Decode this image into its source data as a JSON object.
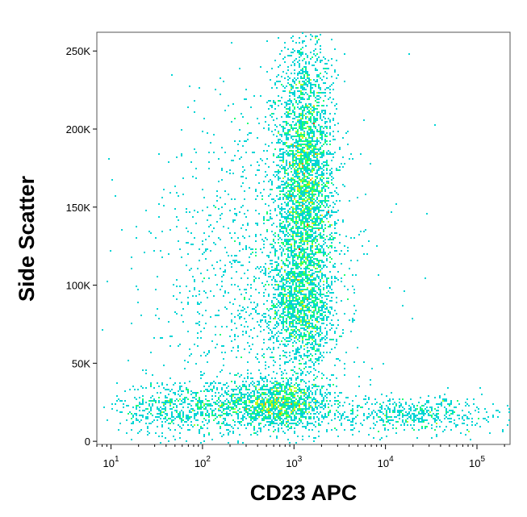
{
  "chart_data": {
    "type": "scatter",
    "subtype": "flow-cytometry-density-dot-plot",
    "xlabel": "CD23 APC",
    "ylabel": "Side Scatter",
    "x_scale": "log",
    "x_ticks": [
      {
        "value": 10,
        "base": "10",
        "exp": "1"
      },
      {
        "value": 100,
        "base": "10",
        "exp": "2"
      },
      {
        "value": 1000,
        "base": "10",
        "exp": "3"
      },
      {
        "value": 10000,
        "base": "10",
        "exp": "4"
      },
      {
        "value": 100000,
        "base": "10",
        "exp": "5"
      }
    ],
    "y_ticks": [
      {
        "value": 0,
        "label": "0"
      },
      {
        "value": 50000,
        "label": "50K"
      },
      {
        "value": 100000,
        "label": "100K"
      },
      {
        "value": 150000,
        "label": "150K"
      },
      {
        "value": 200000,
        "label": "200K"
      },
      {
        "value": 250000,
        "label": "250K"
      }
    ],
    "xlim": [
      7,
      230000
    ],
    "ylim": [
      -2000,
      262000
    ],
    "grid": false,
    "color_scale": [
      "#0000ff",
      "#00bfff",
      "#00ff80",
      "#ffff00",
      "#ff0000"
    ],
    "populations": [
      {
        "center_x": 650,
        "center_y": 24000,
        "spread_log_x": 0.3,
        "spread_y": 8000,
        "points": 1400
      },
      {
        "center_x": 60,
        "center_y": 21000,
        "spread_log_x": 0.35,
        "spread_y": 9000,
        "points": 600
      },
      {
        "center_x": 20000,
        "center_y": 17000,
        "spread_log_x": 0.55,
        "spread_y": 6000,
        "points": 550
      },
      {
        "center_x": 1300,
        "center_y": 165000,
        "spread_log_x": 0.16,
        "spread_y": 45000,
        "points": 3400
      },
      {
        "center_x": 1200,
        "center_y": 85000,
        "spread_log_x": 0.18,
        "spread_y": 20000,
        "points": 1100
      },
      {
        "center_x": 400,
        "center_y": 100000,
        "spread_log_x": 0.6,
        "spread_y": 60000,
        "points": 1200
      }
    ]
  }
}
